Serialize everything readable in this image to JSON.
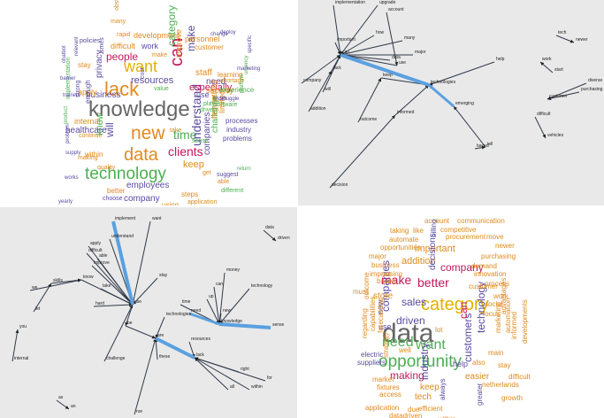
{
  "wordcloud1": {
    "words": [
      {
        "t": "knowledge",
        "c": "#666666"
      },
      {
        "t": "new",
        "c": "#e08a1e"
      },
      {
        "t": "lack",
        "c": "#e08a1e"
      },
      {
        "t": "can",
        "c": "#c2185b"
      },
      {
        "t": "want",
        "c": "#e0b100"
      },
      {
        "t": "data",
        "c": "#e08a1e"
      },
      {
        "t": "technology",
        "c": "#4caf50"
      },
      {
        "t": "time",
        "c": "#4caf50"
      },
      {
        "t": "clients",
        "c": "#c2185b"
      },
      {
        "t": "understand",
        "c": "#5b4aa0"
      },
      {
        "t": "people",
        "c": "#c2185b"
      },
      {
        "t": "category",
        "c": "#4caf50"
      },
      {
        "t": "make",
        "c": "#5b4aa0"
      },
      {
        "t": "keep",
        "c": "#e08a1e"
      },
      {
        "t": "employees",
        "c": "#5b4aa0"
      },
      {
        "t": "business",
        "c": "#5b4aa0"
      },
      {
        "t": "companies",
        "c": "#5b4aa0"
      },
      {
        "t": "resources",
        "c": "#5b4aa0"
      },
      {
        "t": "will",
        "c": "#5b4aa0"
      },
      {
        "t": "know",
        "c": "#4caf50"
      },
      {
        "t": "especially",
        "c": "#c2185b"
      },
      {
        "t": "privacy",
        "c": "#5b4aa0"
      },
      {
        "t": "healthcare",
        "c": "#5b4aa0"
      },
      {
        "t": "staff",
        "c": "#e08a1e"
      },
      {
        "t": "challenge",
        "c": "#4caf50"
      },
      {
        "t": "need",
        "c": "#5b4aa0"
      },
      {
        "t": "company",
        "c": "#5b4aa0"
      },
      {
        "t": "customer",
        "c": "#e08a1e"
      },
      {
        "t": "personnel",
        "c": "#e08a1e"
      },
      {
        "t": "improve",
        "c": "#e08a1e"
      },
      {
        "t": "limited",
        "c": "#e08a1e"
      },
      {
        "t": "regulations",
        "c": "#e08a1e"
      },
      {
        "t": "security",
        "c": "#e08a1e"
      },
      {
        "t": "use",
        "c": "#5b4aa0"
      },
      {
        "t": "difficult",
        "c": "#e08a1e"
      },
      {
        "t": "development",
        "c": "#e08a1e"
      },
      {
        "t": "work",
        "c": "#5b4aa0"
      },
      {
        "t": "internal",
        "c": "#e08a1e"
      },
      {
        "t": "apply",
        "c": "#e08a1e"
      },
      {
        "t": "within",
        "c": "#e08a1e"
      },
      {
        "t": "better",
        "c": "#e08a1e"
      },
      {
        "t": "steps",
        "c": "#e08a1e"
      },
      {
        "t": "using",
        "c": "#e08a1e"
      },
      {
        "t": "enough",
        "c": "#5b4aa0"
      },
      {
        "t": "obstacles",
        "c": "#e08a1e"
      },
      {
        "t": "many",
        "c": "#e08a1e"
      },
      {
        "t": "rapid",
        "c": "#e08a1e"
      },
      {
        "t": "policies",
        "c": "#5b4aa0"
      },
      {
        "t": "smes",
        "c": "#5b4aa0"
      },
      {
        "t": "stay",
        "c": "#e08a1e"
      },
      {
        "t": "make",
        "c": "#e08a1e"
      },
      {
        "t": "learning",
        "c": "#e08a1e"
      },
      {
        "t": "shortage",
        "c": "#e08a1e"
      },
      {
        "t": "experience",
        "c": "#4caf50"
      },
      {
        "t": "processes",
        "c": "#5b4aa0"
      },
      {
        "t": "industry",
        "c": "#5b4aa0"
      },
      {
        "t": "problems",
        "c": "#5b4aa0"
      },
      {
        "t": "take",
        "c": "#e08a1e"
      },
      {
        "t": "sense",
        "c": "#4caf50"
      },
      {
        "t": "get",
        "c": "#e08a1e"
      },
      {
        "t": "continue",
        "c": "#e08a1e"
      },
      {
        "t": "making",
        "c": "#e08a1e"
      },
      {
        "t": "quality",
        "c": "#e08a1e"
      },
      {
        "t": "choose",
        "c": "#5b4aa0"
      },
      {
        "t": "application",
        "c": "#e08a1e"
      },
      {
        "t": "implementation",
        "c": "#4caf50"
      },
      {
        "t": "cost",
        "c": "#5b4aa0"
      },
      {
        "t": "value",
        "c": "#4caf50"
      },
      {
        "t": "driven",
        "c": "#4caf50"
      },
      {
        "t": "software",
        "c": "#4caf50"
      },
      {
        "t": "strong",
        "c": "#5b4aa0"
      },
      {
        "t": "able",
        "c": "#e08a1e"
      },
      {
        "t": "different",
        "c": "#4caf50"
      },
      {
        "t": "suggest",
        "c": "#5b4aa0"
      },
      {
        "t": "works",
        "c": "#5b4aa0"
      },
      {
        "t": "barrier",
        "c": "#5b4aa0"
      },
      {
        "t": "relevant",
        "c": "#5b4aa0"
      },
      {
        "t": "change",
        "c": "#5b4aa0"
      },
      {
        "t": "deploy",
        "c": "#5b4aa0"
      },
      {
        "t": "struggle",
        "c": "#5b4aa0"
      },
      {
        "t": "urgency",
        "c": "#4caf50"
      },
      {
        "t": "marketing",
        "c": "#5b4aa0"
      },
      {
        "t": "return",
        "c": "#4caf50"
      },
      {
        "t": "trainers",
        "c": "#5b4aa0"
      },
      {
        "t": "yearly",
        "c": "#5b4aa0"
      },
      {
        "t": "problem",
        "c": "#5b4aa0"
      },
      {
        "t": "product",
        "c": "#4caf50"
      },
      {
        "t": "platform",
        "c": "#4caf50"
      },
      {
        "t": "play",
        "c": "#4caf50"
      },
      {
        "t": "main",
        "c": "#5b4aa0"
      },
      {
        "t": "chatbot",
        "c": "#5b4aa0"
      },
      {
        "t": "supply",
        "c": "#5b4aa0"
      },
      {
        "t": "specific",
        "c": "#5b4aa0"
      }
    ]
  },
  "network1": {
    "labels": [
      "implementation",
      "upgrade",
      "account",
      "tech",
      "newer",
      "important",
      "how",
      "many",
      "major",
      "use",
      "company",
      "can",
      "lack",
      "data",
      "keep",
      "technologies",
      "will",
      "outcome",
      "informed",
      "addition",
      "emerging",
      "help",
      "start",
      "work",
      "diverse",
      "customer",
      "purchasing",
      "tell",
      "decision",
      "difficult",
      "vehicles",
      "based"
    ]
  },
  "network2": {
    "labels": [
      "implement",
      "want",
      "data",
      "driven",
      "understand",
      "apply",
      "able",
      "difficult",
      "improve",
      "skills",
      "we",
      "know",
      "take",
      "stay",
      "money",
      "can",
      "technology",
      "hard",
      "use",
      "time",
      "up",
      "need",
      "technologies",
      "new",
      "knowledge",
      "sense",
      "be",
      "are",
      "resources",
      "internal",
      "you",
      "let",
      "challenge",
      "these",
      "right",
      "for",
      "all",
      "as",
      "an",
      "nor",
      "within",
      "lack"
    ]
  },
  "wordcloud2": {
    "words": [
      {
        "t": "data",
        "c": "#666666"
      },
      {
        "t": "category",
        "c": "#e0b100"
      },
      {
        "t": "opportunity",
        "c": "#4caf50"
      },
      {
        "t": "need",
        "c": "#4caf50"
      },
      {
        "t": "want",
        "c": "#4caf50"
      },
      {
        "t": "make",
        "c": "#c2185b"
      },
      {
        "t": "better",
        "c": "#c2185b"
      },
      {
        "t": "company",
        "c": "#c2185b"
      },
      {
        "t": "making",
        "c": "#c2185b"
      },
      {
        "t": "driven",
        "c": "#5b4aa0"
      },
      {
        "t": "companies",
        "c": "#5b4aa0"
      },
      {
        "t": "industry",
        "c": "#5b4aa0"
      },
      {
        "t": "customers",
        "c": "#5b4aa0"
      },
      {
        "t": "technology",
        "c": "#5b4aa0"
      },
      {
        "t": "sales",
        "c": "#5b4aa0"
      },
      {
        "t": "can",
        "c": "#c2185b"
      },
      {
        "t": "important",
        "c": "#e08a1e"
      },
      {
        "t": "addition",
        "c": "#e08a1e"
      },
      {
        "t": "decisions",
        "c": "#5b4aa0"
      },
      {
        "t": "store",
        "c": "#e08a1e"
      },
      {
        "t": "keep",
        "c": "#e08a1e"
      },
      {
        "t": "tech",
        "c": "#e08a1e"
      },
      {
        "t": "easier",
        "c": "#e08a1e"
      },
      {
        "t": "help",
        "c": "#5b4aa0"
      },
      {
        "t": "new",
        "c": "#5b4aa0"
      },
      {
        "t": "use",
        "c": "#5b4aa0"
      },
      {
        "t": "lot",
        "c": "#e08a1e"
      },
      {
        "t": "account",
        "c": "#e08a1e"
      },
      {
        "t": "communication",
        "c": "#e08a1e"
      },
      {
        "t": "competitive",
        "c": "#e08a1e"
      },
      {
        "t": "taking",
        "c": "#e08a1e"
      },
      {
        "t": "like",
        "c": "#e08a1e"
      },
      {
        "t": "billing",
        "c": "#5b4aa0"
      },
      {
        "t": "procurement",
        "c": "#e08a1e"
      },
      {
        "t": "move",
        "c": "#e08a1e"
      },
      {
        "t": "newer",
        "c": "#e08a1e"
      },
      {
        "t": "automate",
        "c": "#e08a1e"
      },
      {
        "t": "opportunities",
        "c": "#e08a1e"
      },
      {
        "t": "major",
        "c": "#e08a1e"
      },
      {
        "t": "purchasing",
        "c": "#e08a1e"
      },
      {
        "t": "demand",
        "c": "#e08a1e"
      },
      {
        "t": "innovation",
        "c": "#e08a1e"
      },
      {
        "t": "business",
        "c": "#e08a1e"
      },
      {
        "t": "impact",
        "c": "#e08a1e"
      },
      {
        "t": "using",
        "c": "#e08a1e"
      },
      {
        "t": "process",
        "c": "#e08a1e"
      },
      {
        "t": "based",
        "c": "#e08a1e"
      },
      {
        "t": "customer",
        "c": "#e08a1e"
      },
      {
        "t": "work",
        "c": "#e08a1e"
      },
      {
        "t": "advantages",
        "c": "#e08a1e"
      },
      {
        "t": "outcome",
        "c": "#e08a1e"
      },
      {
        "t": "must",
        "c": "#e08a1e"
      },
      {
        "t": "regarding",
        "c": "#e08a1e"
      },
      {
        "t": "capabilities",
        "c": "#e08a1e"
      },
      {
        "t": "forecasting",
        "c": "#e08a1e"
      },
      {
        "t": "strategy",
        "c": "#e08a1e"
      },
      {
        "t": "social",
        "c": "#e08a1e"
      },
      {
        "t": "focus",
        "c": "#e08a1e"
      },
      {
        "t": "marketing",
        "c": "#e08a1e"
      },
      {
        "t": "automation",
        "c": "#e08a1e"
      },
      {
        "t": "informed",
        "c": "#e08a1e"
      },
      {
        "t": "developments",
        "c": "#e08a1e"
      },
      {
        "t": "electric",
        "c": "#5b4aa0"
      },
      {
        "t": "suppliers",
        "c": "#5b4aa0"
      },
      {
        "t": "well",
        "c": "#e08a1e"
      },
      {
        "t": "also",
        "c": "#e08a1e"
      },
      {
        "t": "main",
        "c": "#e08a1e"
      },
      {
        "t": "stay",
        "c": "#e08a1e"
      },
      {
        "t": "difficult",
        "c": "#e08a1e"
      },
      {
        "t": "market",
        "c": "#e08a1e"
      },
      {
        "t": "fixtures",
        "c": "#e08a1e"
      },
      {
        "t": "access",
        "c": "#e08a1e"
      },
      {
        "t": "always",
        "c": "#5b4aa0"
      },
      {
        "t": "netherlands",
        "c": "#e08a1e"
      },
      {
        "t": "growth",
        "c": "#e08a1e"
      },
      {
        "t": "application",
        "c": "#e08a1e"
      },
      {
        "t": "due",
        "c": "#e08a1e"
      },
      {
        "t": "efficient",
        "c": "#e08a1e"
      },
      {
        "t": "within",
        "c": "#e08a1e"
      },
      {
        "t": "greater",
        "c": "#5b4aa0"
      },
      {
        "t": "datadriven",
        "c": "#e08a1e"
      },
      {
        "t": "chatbot",
        "c": "#e08a1e"
      },
      {
        "t": "improved",
        "c": "#e08a1e"
      },
      {
        "t": "efficiency",
        "c": "#e08a1e"
      }
    ]
  }
}
